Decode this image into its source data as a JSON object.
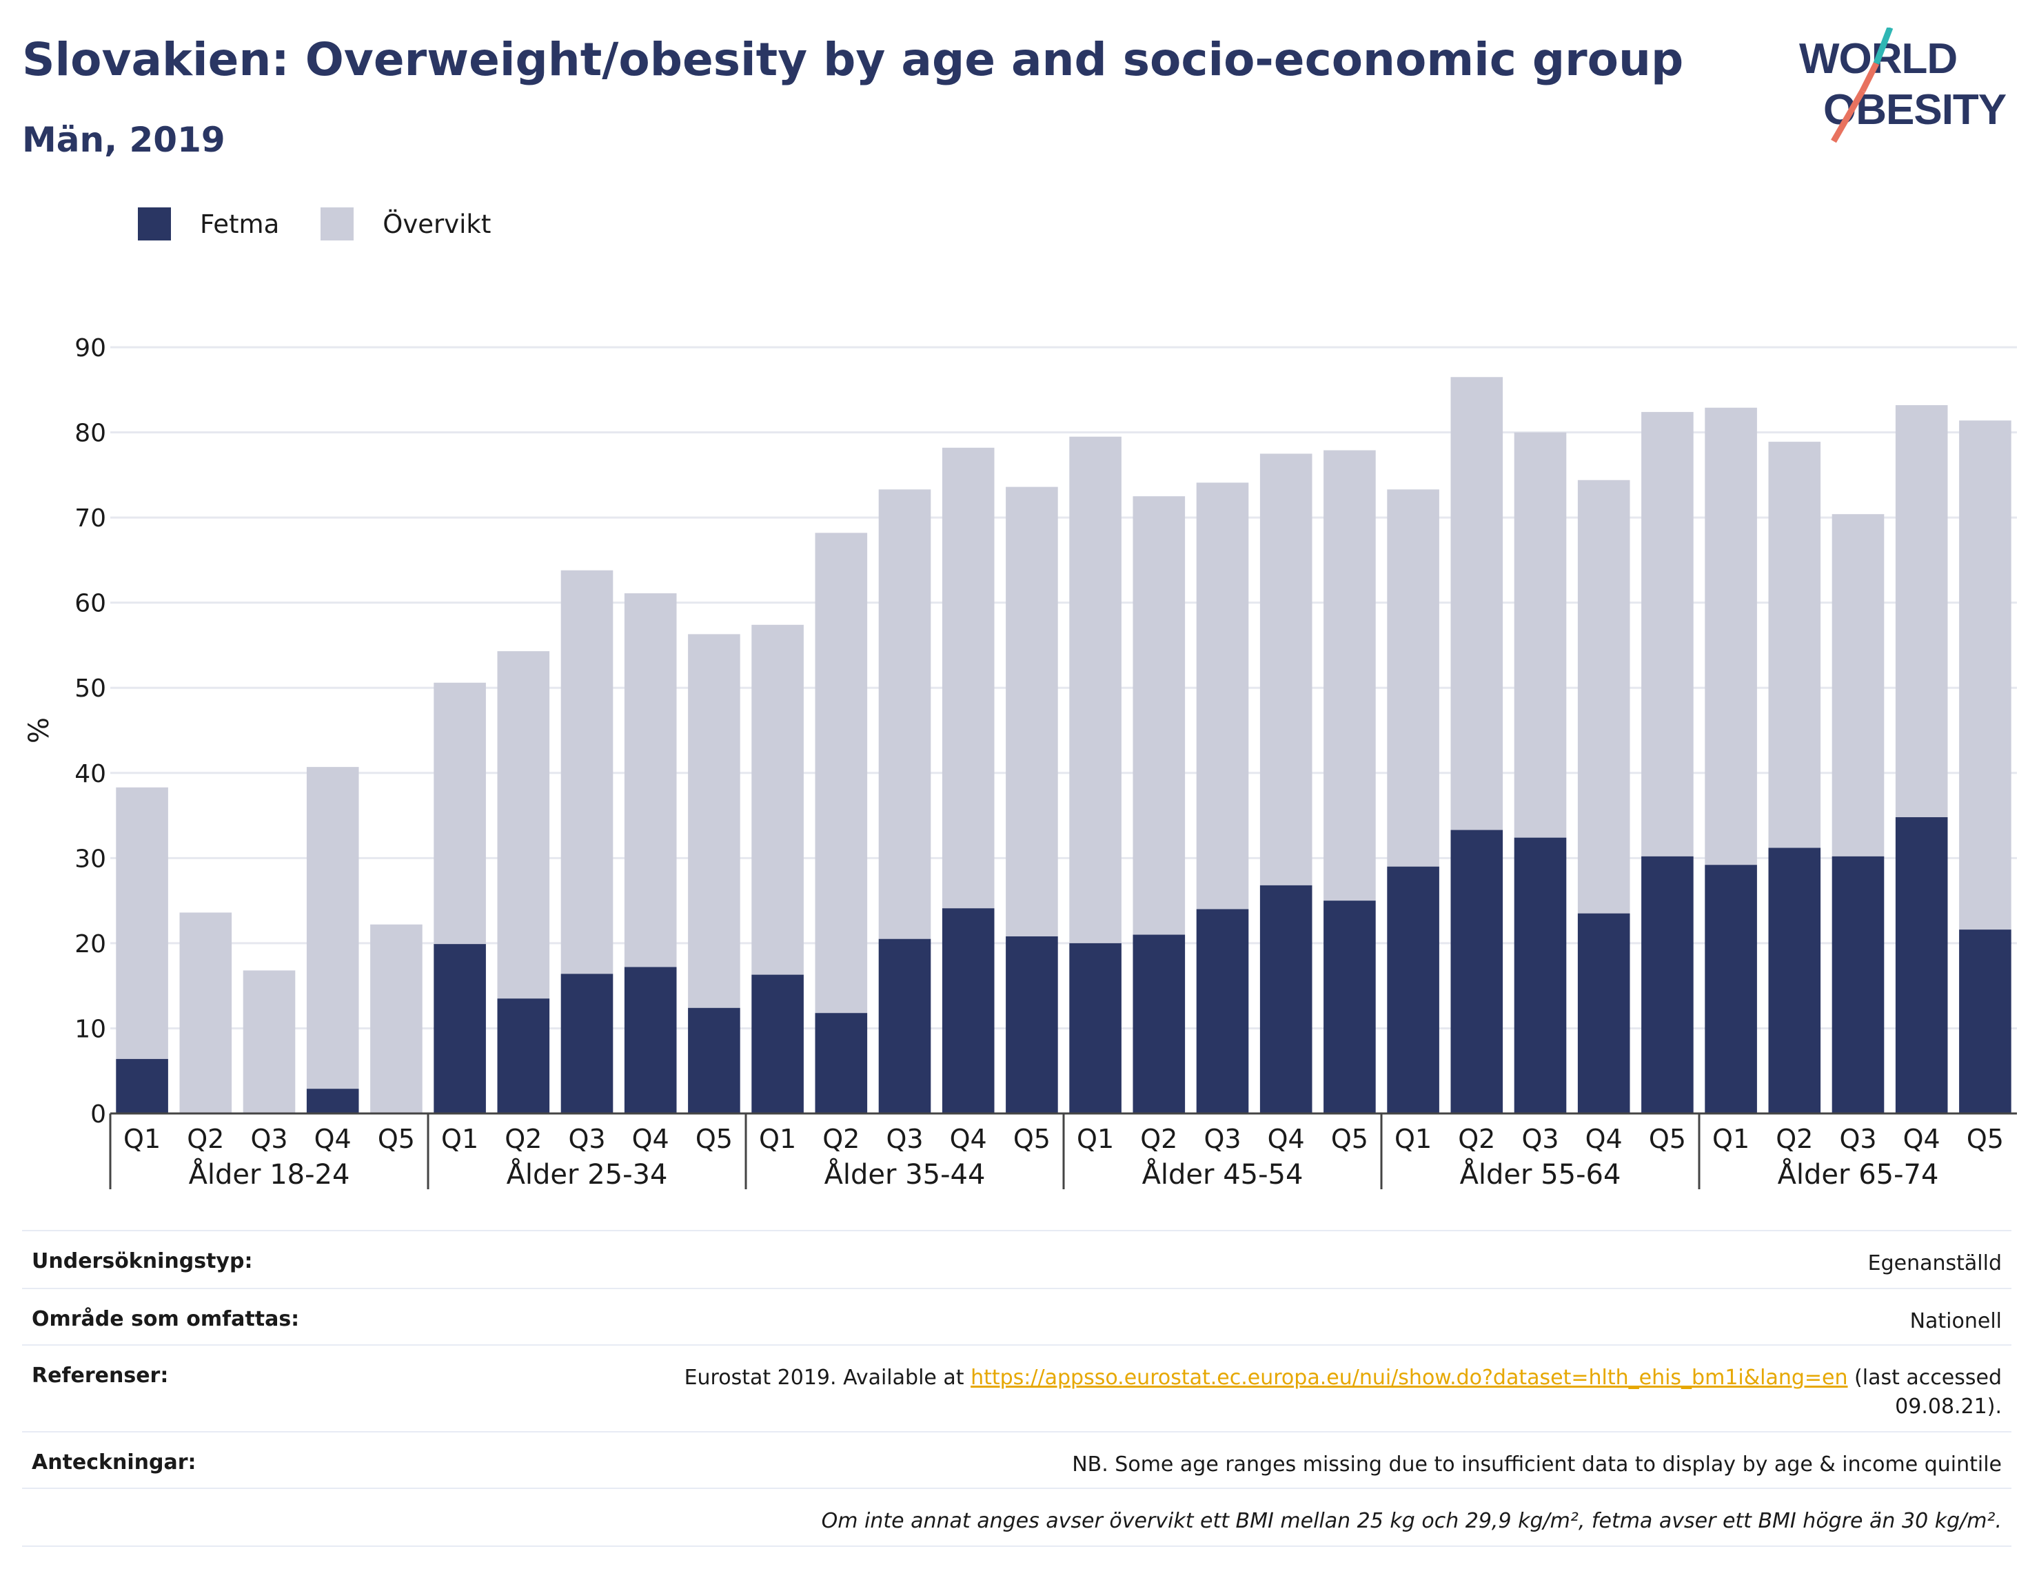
{
  "header": {
    "title": "Slovakien: Overweight/obesity by age and socio-economic group",
    "subtitle": "Män, 2019"
  },
  "logo": {
    "line1": "WORLD",
    "line2": "OBESITY",
    "colors": {
      "text": "#2a3663",
      "stroke_top": "#2fb6b4",
      "stroke_bottom": "#e8725f"
    }
  },
  "legend": [
    {
      "label": "Fetma",
      "color": "#2a3663"
    },
    {
      "label": "Övervikt",
      "color": "#cbcdda"
    }
  ],
  "chart_data": {
    "type": "bar",
    "stacked": true,
    "ylabel": "%",
    "ylim": [
      0,
      90
    ],
    "yticks": [
      0,
      10,
      20,
      30,
      40,
      50,
      60,
      70,
      80,
      90
    ],
    "grid": true,
    "legend_position": "top-left",
    "groups": [
      "Ålder 18-24",
      "Ålder 25-34",
      "Ålder 35-44",
      "Ålder 45-54",
      "Ålder 55-64",
      "Ålder 65-74"
    ],
    "subcategories": [
      "Q1",
      "Q2",
      "Q3",
      "Q4",
      "Q5"
    ],
    "series": [
      {
        "name": "Fetma",
        "color": "#2a3663",
        "values": [
          6.4,
          0,
          0,
          2.9,
          0,
          19.9,
          13.5,
          16.4,
          17.2,
          12.4,
          16.3,
          11.8,
          20.5,
          24.1,
          20.8,
          20.0,
          21.0,
          24.0,
          26.8,
          25.0,
          29.0,
          33.3,
          32.4,
          23.5,
          30.2,
          29.2,
          31.2,
          30.2,
          34.8,
          21.6
        ]
      },
      {
        "name": "Övervikt",
        "color": "#cbcdda",
        "values": [
          31.9,
          23.6,
          16.8,
          37.8,
          22.2,
          30.7,
          40.8,
          47.4,
          43.9,
          43.9,
          41.1,
          56.4,
          52.8,
          54.1,
          52.8,
          59.5,
          51.5,
          50.1,
          50.7,
          52.9,
          44.3,
          53.2,
          47.6,
          50.9,
          52.2,
          53.7,
          47.7,
          40.2,
          48.4,
          59.8
        ]
      }
    ]
  },
  "footer": {
    "rows": [
      {
        "label": "Undersökningstyp:",
        "value": "Egenanställd"
      },
      {
        "label": "Område som omfattas:",
        "value": "Nationell"
      },
      {
        "label": "Referenser:",
        "pre": "Eurostat 2019. Available at ",
        "link": "https://appsso.eurostat.ec.europa.eu/nui/show.do?dataset=hlth_ehis_bm1i&lang=en",
        "post": " (last accessed",
        "post2": "09.08.21)."
      },
      {
        "label": "Anteckningar:",
        "value": "NB. Some age ranges missing due to insufficient data to display by age & income quintile"
      },
      {
        "label": "",
        "value": "Om inte annat anges avser övervikt ett BMI mellan 25 kg och 29,9 kg/m², fetma avser ett BMI högre än 30 kg/m²."
      }
    ]
  }
}
